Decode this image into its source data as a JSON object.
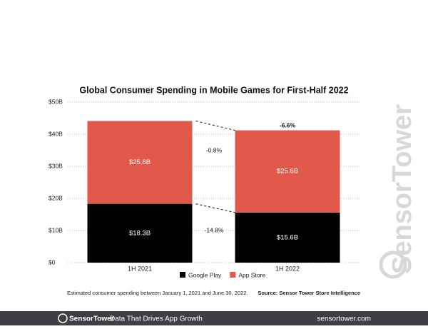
{
  "chart_data": {
    "type": "stacked-bar",
    "title": "Global Consumer Spending in Mobile Games for First-Half 2022",
    "categories": [
      "1H 2021",
      "1H 2022"
    ],
    "series": [
      {
        "name": "Google Play",
        "color": "#000000",
        "values": [
          18.3,
          15.6
        ],
        "value_labels": [
          "$18.3B",
          "$15.6B"
        ]
      },
      {
        "name": "App Store",
        "color": "#e0594a",
        "values": [
          25.8,
          25.6
        ],
        "value_labels": [
          "$25.8B",
          "$25.6B"
        ]
      }
    ],
    "ylim": [
      0,
      50
    ],
    "yticks": [
      {
        "value": 0,
        "label": "$0"
      },
      {
        "value": 10,
        "label": "$10B"
      },
      {
        "value": 20,
        "label": "$20B"
      },
      {
        "value": 30,
        "label": "$30B"
      },
      {
        "value": 40,
        "label": "$40B"
      },
      {
        "value": 50,
        "label": "$50B"
      }
    ],
    "grid": true,
    "annotations": [
      "-0.8%",
      "-14.8%",
      "-6.6%"
    ],
    "note": "Estimated consumer spending between January 1, 2021 and June 30, 2022.",
    "source": "Source: Sensor Tower Store Intelligence"
  },
  "watermark": "SensorTower",
  "footer": {
    "brand": "SensorTower",
    "tagline": "Data That Drives App Growth",
    "url": "sensortower.com"
  }
}
